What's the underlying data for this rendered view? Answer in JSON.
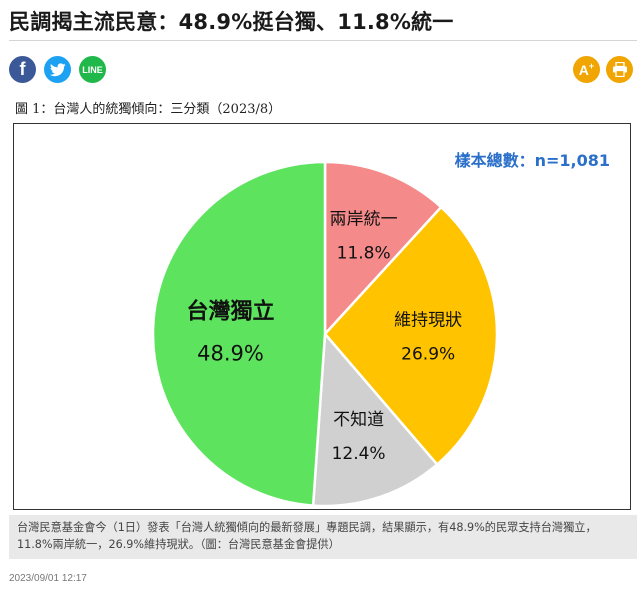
{
  "article": {
    "headline": "民調揭主流民意：48.9%挺台獨、11.8%統一",
    "timestamp": "2023/09/01 12:17",
    "figure_caption": "圖 1：台灣人的統獨傾向：三分類（2023/8）",
    "photo_caption": "台灣民意基金會今（1日）發表「台灣人統獨傾向的最新發展」專題民調，結果顯示，有48.9%的民眾支持台灣獨立，11.8%兩岸統一，26.9%維持現狀。（圖：台灣民意基金會提供）"
  },
  "share": {
    "facebook_label": "f",
    "line_label": "LINE",
    "font_size_label": "A",
    "icons": [
      "facebook-icon",
      "twitter-icon",
      "line-icon",
      "font-size-icon",
      "print-icon"
    ],
    "colors": {
      "facebook": "#3b5998",
      "twitter": "#1da1f2",
      "line": "#20b84a",
      "tools": "#f0a500"
    }
  },
  "chart_data": {
    "type": "pie",
    "annotation": "樣本總數：n=1,081",
    "slices": [
      {
        "label": "兩岸統一",
        "value": 11.8,
        "value_label": "11.8%",
        "color": "#f58a8a"
      },
      {
        "label": "維持現狀",
        "value": 26.9,
        "value_label": "26.9%",
        "color": "#ffc300"
      },
      {
        "label": "不知道",
        "value": 12.4,
        "value_label": "12.4%",
        "color": "#d0d0d0"
      },
      {
        "label": "台灣獨立",
        "value": 48.9,
        "value_label": "48.9%",
        "color": "#5ee35e"
      }
    ],
    "start_angle": "12 o'clock",
    "direction": "clockwise",
    "annotation_color": "#2a6fc9"
  }
}
